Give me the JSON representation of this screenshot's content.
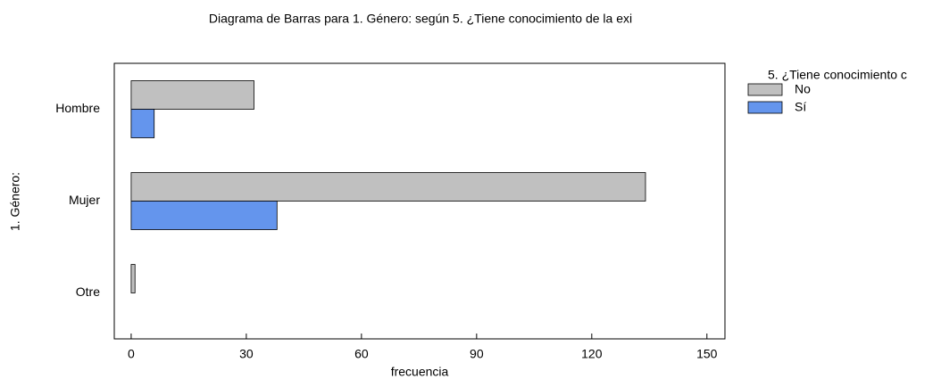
{
  "chart_data": {
    "type": "bar",
    "orientation": "horizontal",
    "title": "Diagrama de Barras para 1. Género: según 5. ¿Tiene conocimiento de la exi",
    "xlabel": "frecuencia",
    "ylabel": "1. Género:",
    "legend_title": "5. ¿Tiene conocimiento c",
    "categories": [
      "Hombre",
      "Mujer",
      "Otre"
    ],
    "series": [
      {
        "name": "No",
        "color": "#c0c0c0",
        "values": [
          32,
          134,
          1
        ]
      },
      {
        "name": "Sí",
        "color": "#6495ed",
        "values": [
          6,
          38,
          0
        ]
      }
    ],
    "xlim": [
      -4.4,
      154.7
    ],
    "xticks": [
      0,
      30,
      60,
      90,
      120,
      150
    ],
    "grid": false,
    "legend": "right"
  }
}
